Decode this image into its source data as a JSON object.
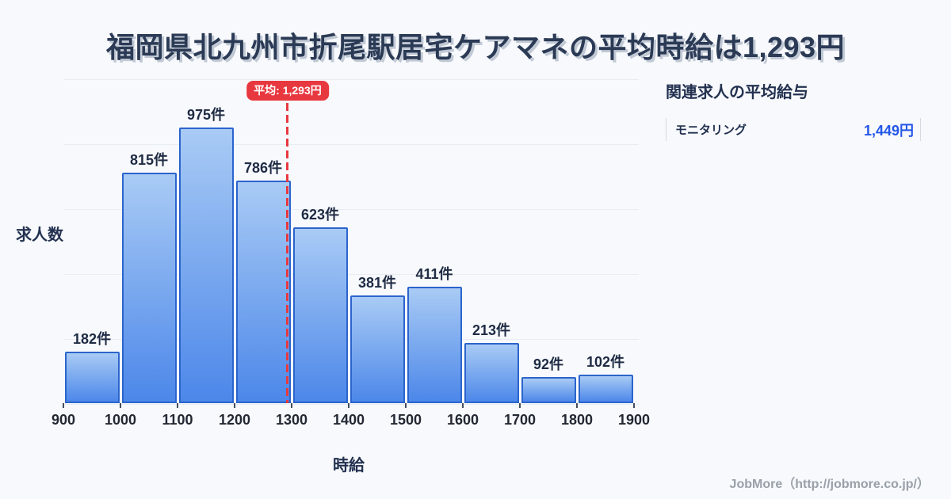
{
  "title": {
    "text": "福岡県北九州市折尾駅居宅ケアマネの平均時給は1,293円"
  },
  "chart_data": {
    "type": "bar",
    "title": "福岡県北九州市折尾駅居宅ケアマネの平均時給は1,293円",
    "xlabel": "時給",
    "ylabel": "求人数",
    "unit_suffix": "件",
    "bin_edges": [
      900,
      1000,
      1100,
      1200,
      1300,
      1400,
      1500,
      1600,
      1700,
      1800,
      1900
    ],
    "values": [
      182,
      815,
      975,
      786,
      623,
      381,
      411,
      213,
      92,
      102
    ],
    "x_range": [
      900,
      1900
    ],
    "grid": true,
    "legend": "none",
    "average": {
      "value": 1293,
      "label": "平均: 1,293円"
    },
    "colors": {
      "bar_fill_top": "#a9cbf5",
      "bar_fill_bottom": "#4c87e9",
      "bar_border": "#2b64cc",
      "average_red": "#e8383f",
      "value_blue": "#2456e8",
      "navy_text": "#233150"
    }
  },
  "side_panel": {
    "heading": "関連求人の平均給与",
    "rows": [
      {
        "label": "モニタリング",
        "value": "1,449円"
      }
    ]
  },
  "footer": {
    "text": "JobMore（http://jobmore.co.jp/）"
  }
}
